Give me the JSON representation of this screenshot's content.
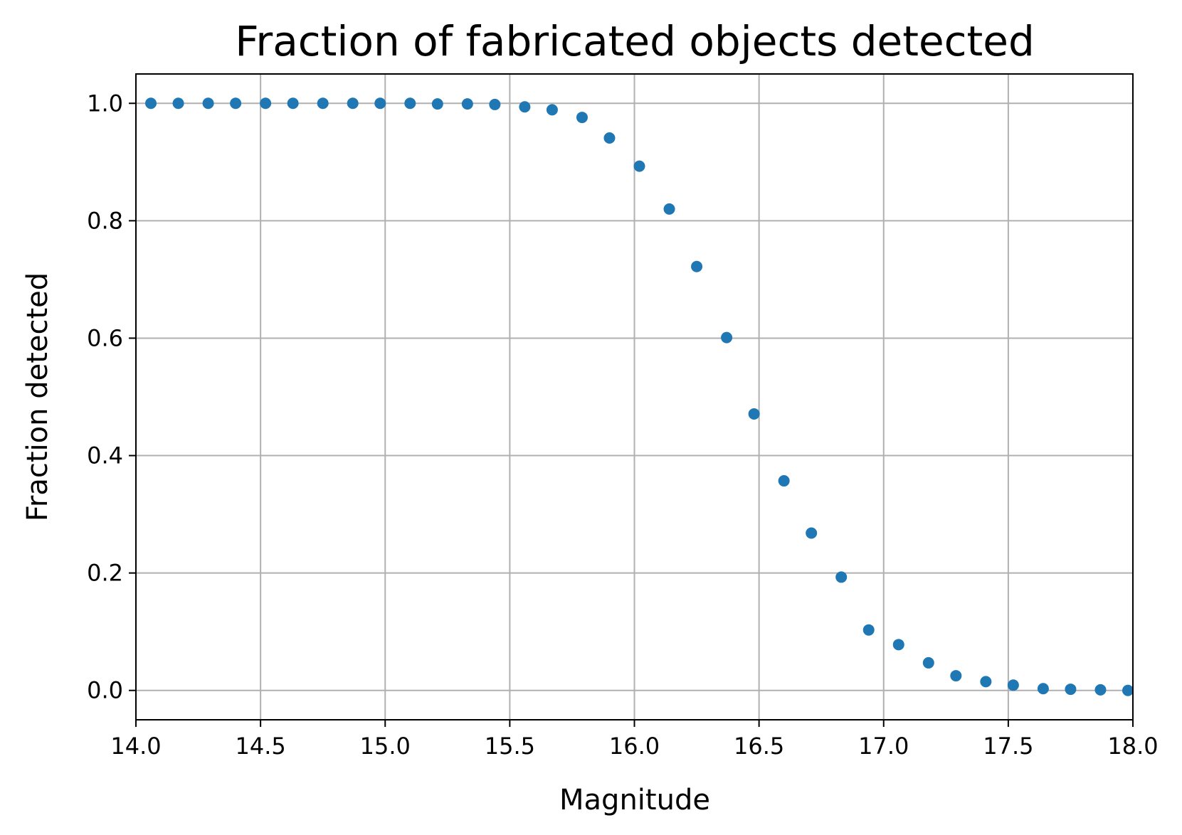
{
  "chart_data": {
    "type": "scatter",
    "title": "Fraction of fabricated objects detected",
    "xlabel": "Magnitude",
    "ylabel": "Fraction detected",
    "xlim": [
      14.0,
      18.0
    ],
    "ylim": [
      -0.05,
      1.05
    ],
    "xticks": [
      14.0,
      14.5,
      15.0,
      15.5,
      16.0,
      16.5,
      17.0,
      17.5,
      18.0
    ],
    "xtick_labels": [
      "14.0",
      "14.5",
      "15.0",
      "15.5",
      "16.0",
      "16.5",
      "17.0",
      "17.5",
      "18.0"
    ],
    "yticks": [
      0.0,
      0.2,
      0.4,
      0.6,
      0.8,
      1.0
    ],
    "ytick_labels": [
      "0.0",
      "0.2",
      "0.4",
      "0.6",
      "0.8",
      "1.0"
    ],
    "grid": true,
    "color": "#1f77b4",
    "series": [
      {
        "x": [
          14.06,
          14.17,
          14.29,
          14.4,
          14.52,
          14.63,
          14.75,
          14.87,
          14.98,
          15.1,
          15.21,
          15.33,
          15.44,
          15.56,
          15.67,
          15.79,
          15.9,
          16.02,
          16.14,
          16.25,
          16.37,
          16.48,
          16.6,
          16.71,
          16.83,
          16.94,
          17.06,
          17.18,
          17.29,
          17.41,
          17.52,
          17.64,
          17.75,
          17.87,
          17.98
        ],
        "y": [
          1.0,
          1.0,
          1.0,
          1.0,
          1.0,
          1.0,
          1.0,
          1.0,
          1.0,
          1.0,
          0.999,
          0.999,
          0.998,
          0.994,
          0.989,
          0.976,
          0.941,
          0.893,
          0.82,
          0.722,
          0.601,
          0.471,
          0.357,
          0.268,
          0.193,
          0.103,
          0.078,
          0.047,
          0.025,
          0.015,
          0.009,
          0.003,
          0.002,
          0.001,
          0.0
        ]
      }
    ]
  }
}
